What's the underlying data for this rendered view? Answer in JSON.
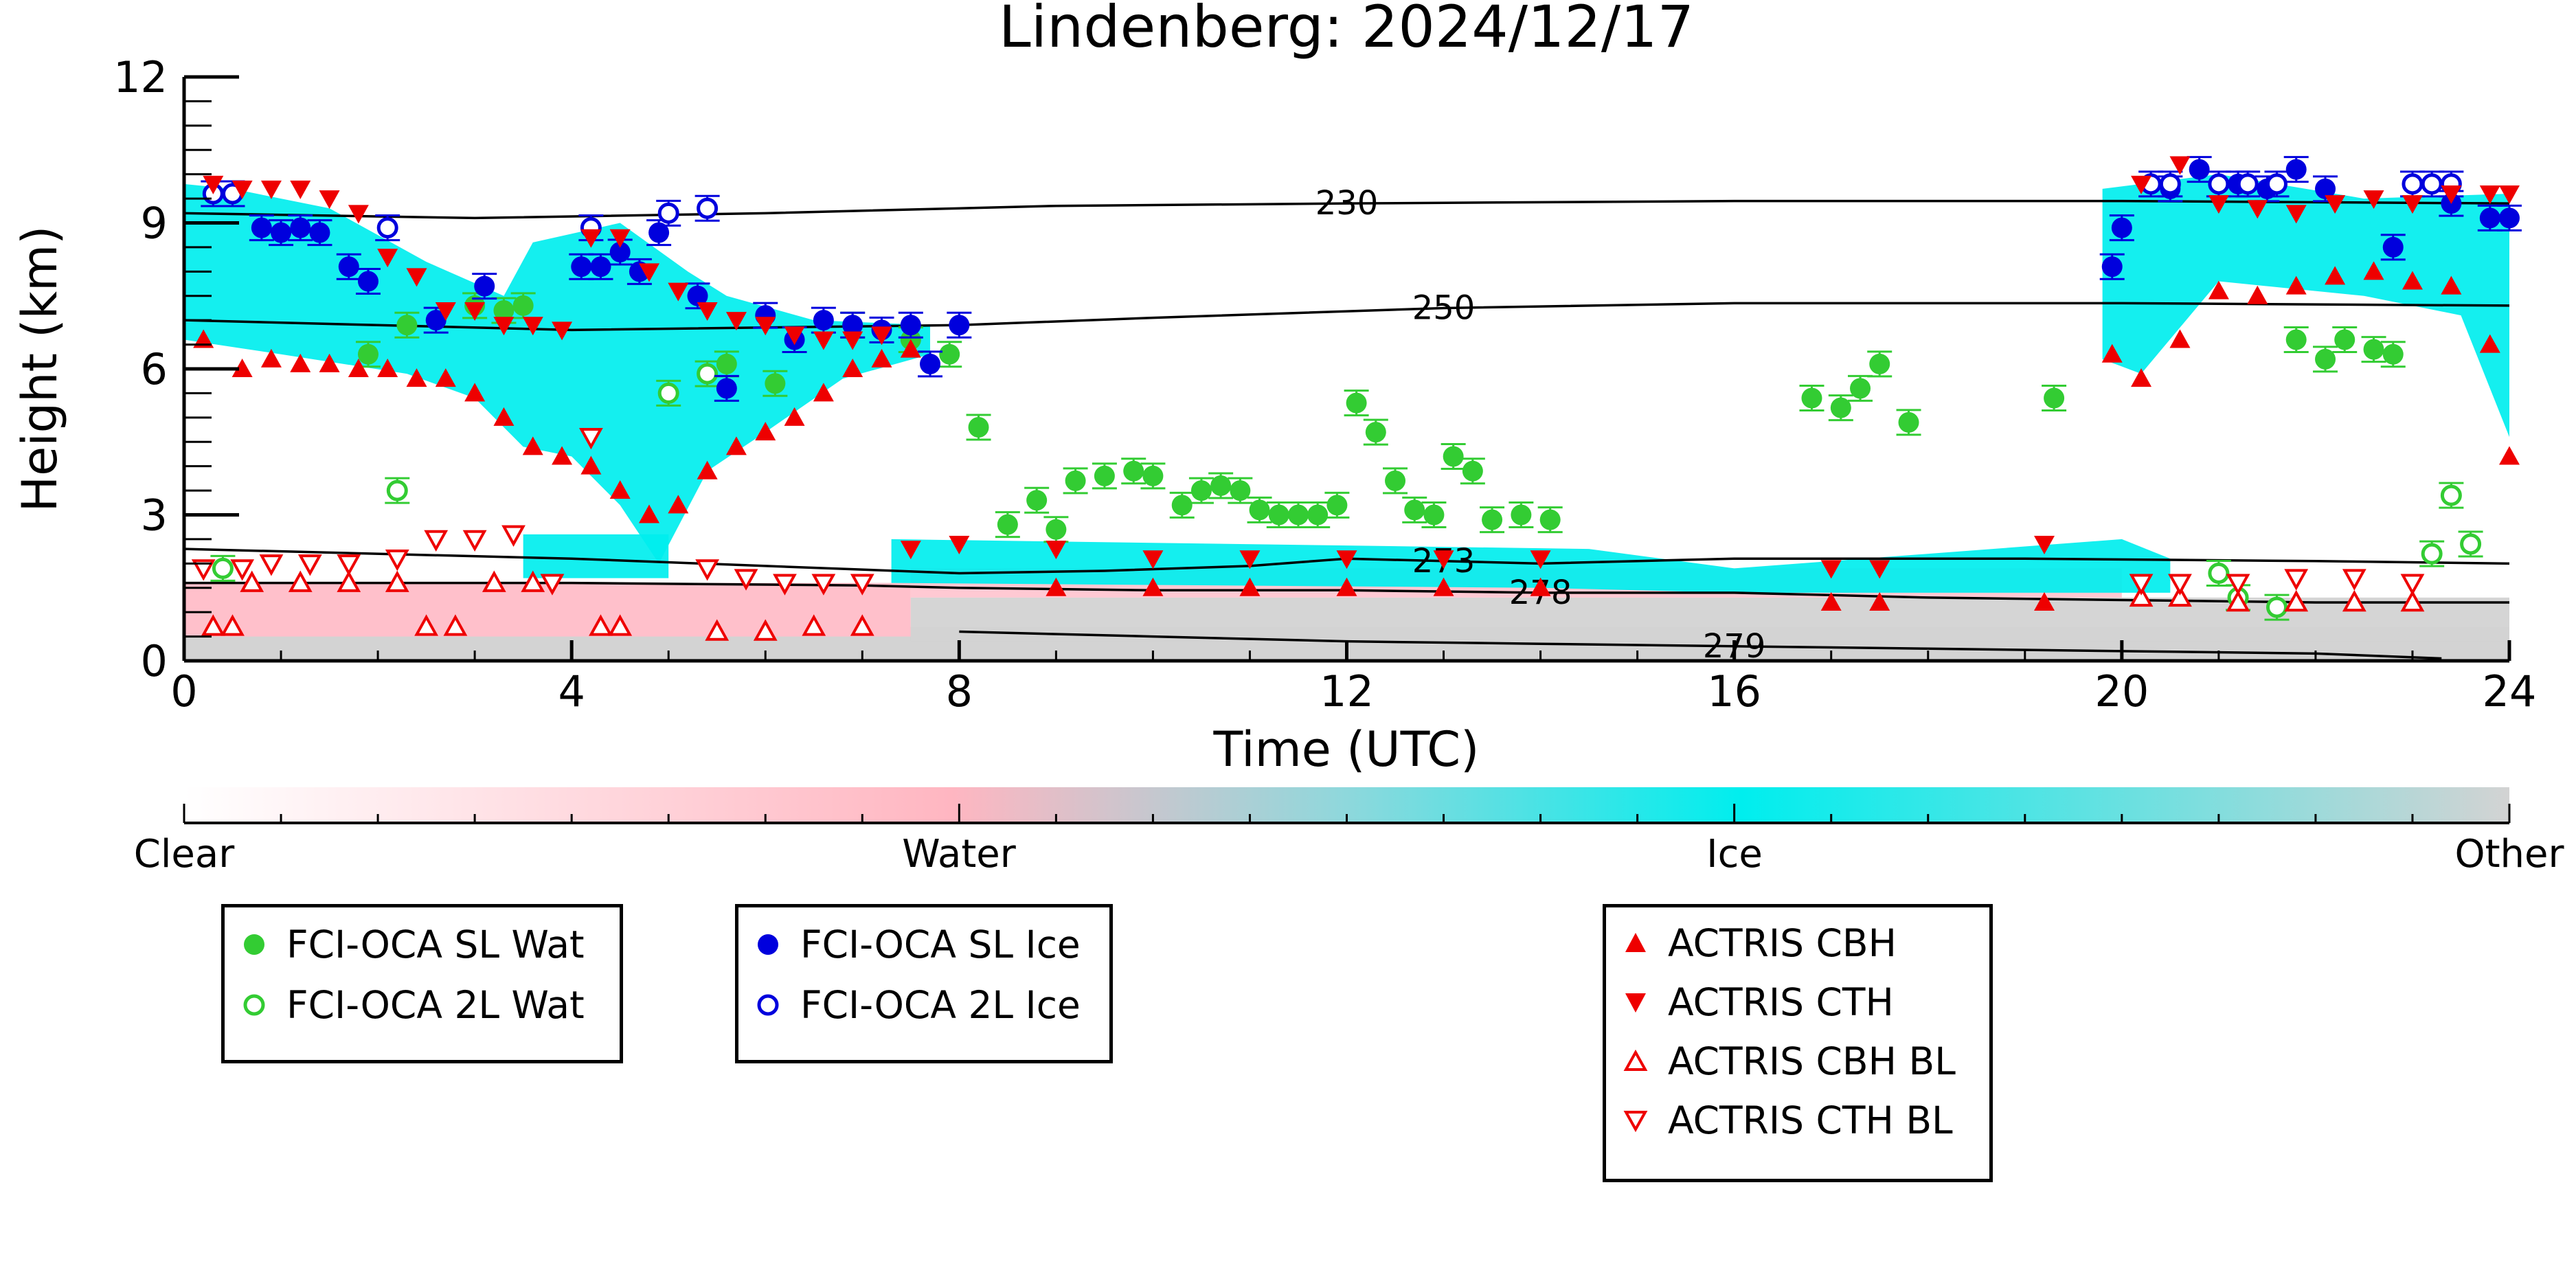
{
  "chart_data": {
    "type": "scatter",
    "title": "Lindenberg: 2024/12/17",
    "xlabel": "Time (UTC)",
    "ylabel": "Height (km)",
    "xlim": [
      0,
      24
    ],
    "ylim": [
      0,
      12
    ],
    "xticks": [
      0,
      4,
      8,
      12,
      16,
      20,
      24
    ],
    "yticks": [
      0,
      3,
      6,
      9,
      12
    ],
    "colorbar": {
      "labels": [
        "Clear",
        "Water",
        "Ice",
        "Other"
      ],
      "colors": [
        "#ffffff",
        "#ffb6c1",
        "#00eeee",
        "#d3d3d3"
      ]
    },
    "contours": [
      {
        "label": "230",
        "points": [
          [
            0,
            9.2
          ],
          [
            3,
            9.1
          ],
          [
            6,
            9.2
          ],
          [
            9,
            9.35
          ],
          [
            12,
            9.4
          ],
          [
            16,
            9.45
          ],
          [
            20,
            9.45
          ],
          [
            24,
            9.4
          ]
        ]
      },
      {
        "label": "250",
        "points": [
          [
            0,
            7.0
          ],
          [
            4,
            6.8
          ],
          [
            8,
            6.9
          ],
          [
            10,
            7.05
          ],
          [
            13,
            7.25
          ],
          [
            16,
            7.35
          ],
          [
            20,
            7.35
          ],
          [
            24,
            7.3
          ]
        ]
      },
      {
        "label": "273",
        "points": [
          [
            0,
            2.3
          ],
          [
            4,
            2.1
          ],
          [
            8,
            1.8
          ],
          [
            9.5,
            1.85
          ],
          [
            11,
            1.95
          ],
          [
            12,
            2.1
          ],
          [
            13,
            2.05
          ],
          [
            14,
            2.0
          ],
          [
            16,
            2.1
          ],
          [
            19,
            2.1
          ],
          [
            22,
            2.05
          ],
          [
            24,
            2.0
          ]
        ]
      },
      {
        "label": "278",
        "points": [
          [
            0,
            1.6
          ],
          [
            4,
            1.6
          ],
          [
            7,
            1.55
          ],
          [
            8,
            1.5
          ],
          [
            10,
            1.45
          ],
          [
            12,
            1.45
          ],
          [
            14,
            1.4
          ],
          [
            16,
            1.4
          ],
          [
            18,
            1.3
          ],
          [
            20,
            1.25
          ],
          [
            22,
            1.2
          ],
          [
            24,
            1.2
          ]
        ]
      },
      {
        "label": "279",
        "points": [
          [
            8,
            0.6
          ],
          [
            10,
            0.5
          ],
          [
            12,
            0.4
          ],
          [
            14,
            0.35
          ],
          [
            16,
            0.3
          ],
          [
            18,
            0.25
          ],
          [
            20,
            0.2
          ],
          [
            22,
            0.15
          ],
          [
            23.3,
            0.05
          ]
        ]
      }
    ],
    "series": [
      {
        "name": "FCI-OCA SL Wat",
        "color": "#33cc33",
        "points": [
          [
            1.9,
            6.3
          ],
          [
            2.3,
            6.9
          ],
          [
            3.0,
            7.3
          ],
          [
            3.3,
            7.2
          ],
          [
            3.5,
            7.3
          ],
          [
            5.6,
            6.1
          ],
          [
            6.1,
            5.7
          ],
          [
            6.9,
            6.9
          ],
          [
            7.5,
            6.6
          ],
          [
            7.9,
            6.3
          ],
          [
            8.2,
            4.8
          ],
          [
            8.5,
            2.8
          ],
          [
            8.8,
            3.3
          ],
          [
            9.0,
            2.7
          ],
          [
            9.2,
            3.7
          ],
          [
            9.5,
            3.8
          ],
          [
            9.8,
            3.9
          ],
          [
            10.0,
            3.8
          ],
          [
            10.3,
            3.2
          ],
          [
            10.5,
            3.5
          ],
          [
            10.7,
            3.6
          ],
          [
            10.9,
            3.5
          ],
          [
            11.1,
            3.1
          ],
          [
            11.3,
            3.0
          ],
          [
            11.5,
            3.0
          ],
          [
            11.7,
            3.0
          ],
          [
            11.9,
            3.2
          ],
          [
            12.1,
            5.3
          ],
          [
            12.3,
            4.7
          ],
          [
            12.5,
            3.7
          ],
          [
            12.7,
            3.1
          ],
          [
            12.9,
            3.0
          ],
          [
            13.1,
            4.2
          ],
          [
            13.3,
            3.9
          ],
          [
            13.5,
            2.9
          ],
          [
            13.8,
            3.0
          ],
          [
            14.1,
            2.9
          ],
          [
            16.8,
            5.4
          ],
          [
            17.1,
            5.2
          ],
          [
            17.3,
            5.6
          ],
          [
            17.5,
            6.1
          ],
          [
            17.8,
            4.9
          ],
          [
            19.3,
            5.4
          ],
          [
            21.8,
            6.6
          ],
          [
            22.1,
            6.2
          ],
          [
            22.3,
            6.6
          ],
          [
            22.6,
            6.4
          ],
          [
            22.8,
            6.3
          ]
        ]
      },
      {
        "name": "FCI-OCA 2L Wat",
        "color": "#33cc33",
        "points": [
          [
            0.4,
            1.9
          ],
          [
            2.2,
            3.5
          ],
          [
            5.0,
            5.5
          ],
          [
            5.4,
            5.9
          ],
          [
            21.0,
            1.8
          ],
          [
            21.2,
            1.3
          ],
          [
            21.6,
            1.1
          ],
          [
            23.2,
            2.2
          ],
          [
            23.4,
            3.4
          ],
          [
            23.6,
            2.4
          ]
        ]
      },
      {
        "name": "FCI-OCA SL Ice",
        "color": "#0000dd",
        "points": [
          [
            0.8,
            8.9
          ],
          [
            1.0,
            8.8
          ],
          [
            1.2,
            8.9
          ],
          [
            1.4,
            8.8
          ],
          [
            1.7,
            8.1
          ],
          [
            1.9,
            7.8
          ],
          [
            2.6,
            7.0
          ],
          [
            3.1,
            7.7
          ],
          [
            4.1,
            8.1
          ],
          [
            4.3,
            8.1
          ],
          [
            4.5,
            8.4
          ],
          [
            4.7,
            8.0
          ],
          [
            4.9,
            8.8
          ],
          [
            5.3,
            7.5
          ],
          [
            5.6,
            5.6
          ],
          [
            6.0,
            7.1
          ],
          [
            6.3,
            6.6
          ],
          [
            6.6,
            7.0
          ],
          [
            6.9,
            6.9
          ],
          [
            7.2,
            6.8
          ],
          [
            7.5,
            6.9
          ],
          [
            7.7,
            6.1
          ],
          [
            8.0,
            6.9
          ],
          [
            19.9,
            8.1
          ],
          [
            20.0,
            8.9
          ],
          [
            20.5,
            9.7
          ],
          [
            20.8,
            10.1
          ],
          [
            21.2,
            9.8
          ],
          [
            21.5,
            9.7
          ],
          [
            21.8,
            10.1
          ],
          [
            22.1,
            9.7
          ],
          [
            22.8,
            8.5
          ],
          [
            23.4,
            9.4
          ],
          [
            23.8,
            9.1
          ],
          [
            24.0,
            9.1
          ]
        ]
      },
      {
        "name": "FCI-OCA 2L Ice",
        "color": "#0000dd",
        "points": [
          [
            0.3,
            9.6
          ],
          [
            0.5,
            9.6
          ],
          [
            2.1,
            8.9
          ],
          [
            4.2,
            8.9
          ],
          [
            5.0,
            9.2
          ],
          [
            5.4,
            9.3
          ],
          [
            20.3,
            9.8
          ],
          [
            20.5,
            9.8
          ],
          [
            21.0,
            9.8
          ],
          [
            21.3,
            9.8
          ],
          [
            21.6,
            9.8
          ],
          [
            23.0,
            9.8
          ],
          [
            23.2,
            9.8
          ],
          [
            23.4,
            9.8
          ]
        ]
      },
      {
        "name": "ACTRIS CBH",
        "color": "#ee0000",
        "points": [
          [
            0.2,
            6.6
          ],
          [
            0.6,
            6.0
          ],
          [
            0.9,
            6.2
          ],
          [
            1.2,
            6.1
          ],
          [
            1.5,
            6.1
          ],
          [
            1.8,
            6.0
          ],
          [
            2.1,
            6.0
          ],
          [
            2.4,
            5.8
          ],
          [
            2.7,
            5.8
          ],
          [
            3.0,
            5.5
          ],
          [
            3.3,
            5.0
          ],
          [
            3.6,
            4.4
          ],
          [
            3.9,
            4.2
          ],
          [
            4.2,
            4.0
          ],
          [
            4.5,
            3.5
          ],
          [
            4.8,
            3.0
          ],
          [
            5.1,
            3.2
          ],
          [
            5.4,
            3.9
          ],
          [
            5.7,
            4.4
          ],
          [
            6.0,
            4.7
          ],
          [
            6.3,
            5.0
          ],
          [
            6.6,
            5.5
          ],
          [
            6.9,
            6.0
          ],
          [
            7.2,
            6.2
          ],
          [
            7.5,
            6.4
          ],
          [
            9.0,
            1.5
          ],
          [
            10.0,
            1.5
          ],
          [
            11.0,
            1.5
          ],
          [
            12.0,
            1.5
          ],
          [
            13.0,
            1.5
          ],
          [
            14.0,
            1.5
          ],
          [
            17.0,
            1.2
          ],
          [
            17.5,
            1.2
          ],
          [
            19.2,
            1.2
          ],
          [
            19.9,
            6.3
          ],
          [
            20.2,
            5.8
          ],
          [
            20.6,
            6.6
          ],
          [
            21.0,
            7.6
          ],
          [
            21.4,
            7.5
          ],
          [
            21.8,
            7.7
          ],
          [
            22.2,
            7.9
          ],
          [
            22.6,
            8.0
          ],
          [
            23.0,
            7.8
          ],
          [
            23.4,
            7.7
          ],
          [
            23.8,
            6.5
          ],
          [
            24.0,
            4.2
          ]
        ]
      },
      {
        "name": "ACTRIS CTH",
        "color": "#ee0000",
        "points": [
          [
            0.3,
            9.8
          ],
          [
            0.6,
            9.7
          ],
          [
            0.9,
            9.7
          ],
          [
            1.2,
            9.7
          ],
          [
            1.5,
            9.5
          ],
          [
            1.8,
            9.2
          ],
          [
            2.1,
            8.3
          ],
          [
            2.4,
            7.9
          ],
          [
            2.7,
            7.2
          ],
          [
            3.0,
            7.2
          ],
          [
            3.3,
            6.9
          ],
          [
            3.6,
            6.9
          ],
          [
            3.9,
            6.8
          ],
          [
            4.2,
            8.7
          ],
          [
            4.5,
            8.7
          ],
          [
            4.8,
            8.0
          ],
          [
            5.1,
            7.6
          ],
          [
            5.4,
            7.2
          ],
          [
            5.7,
            7.0
          ],
          [
            6.0,
            6.9
          ],
          [
            6.3,
            6.7
          ],
          [
            6.6,
            6.6
          ],
          [
            6.9,
            6.6
          ],
          [
            7.2,
            6.7
          ],
          [
            7.5,
            2.3
          ],
          [
            8.0,
            2.4
          ],
          [
            9.0,
            2.3
          ],
          [
            10.0,
            2.1
          ],
          [
            11.0,
            2.1
          ],
          [
            12.0,
            2.1
          ],
          [
            13.0,
            2.1
          ],
          [
            14.0,
            2.1
          ],
          [
            17.0,
            1.9
          ],
          [
            17.5,
            1.9
          ],
          [
            19.2,
            2.4
          ],
          [
            20.2,
            9.8
          ],
          [
            20.6,
            10.2
          ],
          [
            21.0,
            9.4
          ],
          [
            21.4,
            9.3
          ],
          [
            21.8,
            9.2
          ],
          [
            22.2,
            9.4
          ],
          [
            22.6,
            9.5
          ],
          [
            23.0,
            9.4
          ],
          [
            23.4,
            9.6
          ],
          [
            23.8,
            9.6
          ],
          [
            24.0,
            9.6
          ]
        ]
      },
      {
        "name": "ACTRIS CBH BL",
        "color": "#ee0000",
        "points": [
          [
            0.3,
            0.7
          ],
          [
            0.5,
            0.7
          ],
          [
            0.7,
            1.6
          ],
          [
            1.2,
            1.6
          ],
          [
            1.7,
            1.6
          ],
          [
            2.2,
            1.6
          ],
          [
            2.5,
            0.7
          ],
          [
            2.8,
            0.7
          ],
          [
            3.2,
            1.6
          ],
          [
            3.6,
            1.6
          ],
          [
            4.3,
            0.7
          ],
          [
            4.5,
            0.7
          ],
          [
            5.5,
            0.6
          ],
          [
            6.0,
            0.6
          ],
          [
            6.5,
            0.7
          ],
          [
            7.0,
            0.7
          ],
          [
            20.2,
            1.3
          ],
          [
            20.6,
            1.3
          ],
          [
            21.2,
            1.2
          ],
          [
            21.8,
            1.2
          ],
          [
            22.4,
            1.2
          ],
          [
            23.0,
            1.2
          ]
        ]
      },
      {
        "name": "ACTRIS CTH BL",
        "color": "#ee0000",
        "points": [
          [
            0.2,
            1.9
          ],
          [
            0.6,
            1.9
          ],
          [
            0.9,
            2.0
          ],
          [
            1.3,
            2.0
          ],
          [
            1.7,
            2.0
          ],
          [
            2.2,
            2.1
          ],
          [
            2.6,
            2.5
          ],
          [
            3.0,
            2.5
          ],
          [
            3.4,
            2.6
          ],
          [
            3.8,
            1.6
          ],
          [
            4.2,
            4.6
          ],
          [
            5.4,
            1.9
          ],
          [
            5.8,
            1.7
          ],
          [
            6.2,
            1.6
          ],
          [
            6.6,
            1.6
          ],
          [
            7.0,
            1.6
          ],
          [
            20.2,
            1.6
          ],
          [
            20.6,
            1.6
          ],
          [
            21.2,
            1.6
          ],
          [
            21.8,
            1.7
          ],
          [
            22.4,
            1.7
          ],
          [
            23.0,
            1.6
          ]
        ]
      }
    ]
  }
}
